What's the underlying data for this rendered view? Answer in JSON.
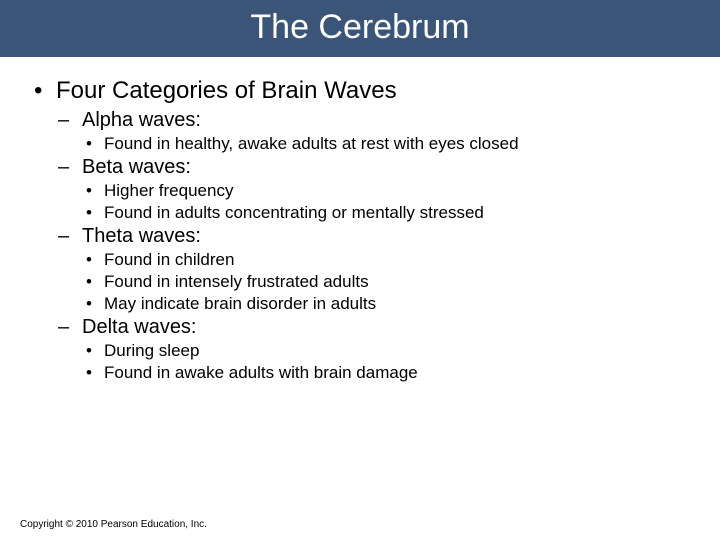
{
  "title": "The Cerebrum",
  "heading": "Four Categories of Brain Waves",
  "waves": [
    {
      "name": "Alpha waves:",
      "points": [
        "Found in healthy, awake adults at rest with eyes closed"
      ]
    },
    {
      "name": "Beta waves:",
      "points": [
        "Higher frequency",
        "Found in adults concentrating or mentally stressed"
      ]
    },
    {
      "name": "Theta waves:",
      "points": [
        "Found in children",
        "Found in intensely frustrated adults",
        "May indicate brain disorder in adults"
      ]
    },
    {
      "name": "Delta waves:",
      "points": [
        "During sleep",
        "Found in awake adults with brain damage"
      ]
    }
  ],
  "copyright": "Copyright © 2010 Pearson Education, Inc.",
  "colors": {
    "title_bg": "#3b5579",
    "title_text": "#ffffff",
    "body_bg": "#ffffff",
    "body_text": "#000000"
  },
  "fonts": {
    "title_size": 34,
    "lvl1_size": 24,
    "lvl2_size": 20,
    "lvl3_size": 17,
    "copyright_size": 10
  }
}
